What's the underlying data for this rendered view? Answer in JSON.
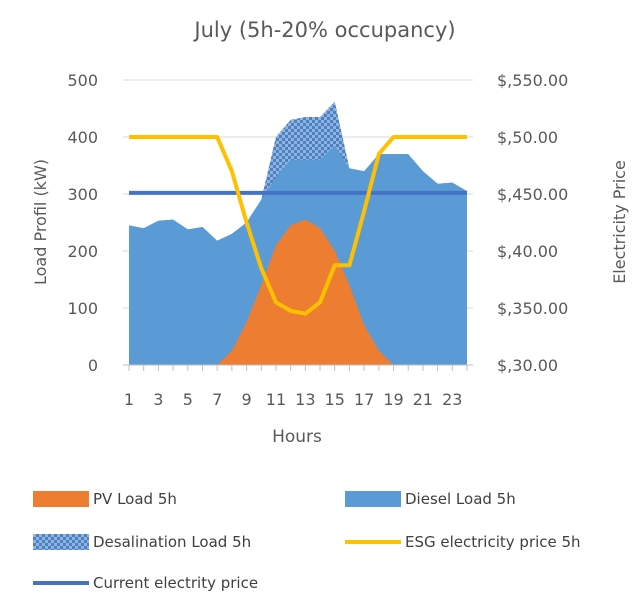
{
  "chart_data": {
    "type": "area",
    "title": "July (5h-20% occupancy)",
    "xlabel": "Hours",
    "ylabel": "Load Profil (kW)",
    "y2label": "Electricity Price",
    "x": [
      1,
      2,
      3,
      4,
      5,
      6,
      7,
      8,
      9,
      10,
      11,
      12,
      13,
      14,
      15,
      16,
      17,
      18,
      19,
      20,
      21,
      22,
      23,
      24
    ],
    "x_tick_labels": [
      "1",
      "3",
      "5",
      "7",
      "9",
      "11",
      "13",
      "15",
      "17",
      "19",
      "21",
      "23"
    ],
    "y_ticks": [
      "0",
      "100",
      "200",
      "300",
      "400",
      "500"
    ],
    "y2_ticks": [
      "$,30.00",
      "$,350.00",
      "$,40.00",
      "$,450.00",
      "$,50.00",
      "$,550.00"
    ],
    "ylim": [
      0,
      500
    ],
    "series": [
      {
        "name": "PV Load 5h",
        "color": "#ED7D31",
        "kind": "area",
        "values": [
          0,
          0,
          0,
          0,
          0,
          0,
          0,
          25,
          75,
          140,
          210,
          245,
          255,
          240,
          200,
          140,
          70,
          25,
          0,
          0,
          0,
          0,
          0,
          0
        ]
      },
      {
        "name": "Diesel Load  5h",
        "color": "#5B9BD5",
        "kind": "area",
        "values": [
          245,
          240,
          253,
          255,
          238,
          242,
          218,
          230,
          250,
          290,
          330,
          360,
          360,
          360,
          385,
          345,
          340,
          370,
          370,
          370,
          340,
          318,
          320,
          305
        ]
      },
      {
        "name": "Desalination Load 5h",
        "color": "#5B9BD5",
        "kind": "pattern",
        "values": [
          245,
          240,
          253,
          255,
          238,
          242,
          218,
          230,
          250,
          290,
          400,
          430,
          435,
          435,
          462,
          345,
          340,
          370,
          370,
          370,
          340,
          318,
          320,
          305
        ]
      },
      {
        "name": "ESG electricity price 5h",
        "color": "#FFC000",
        "kind": "line",
        "values": [
          400,
          400,
          400,
          400,
          400,
          400,
          400,
          340,
          250,
          170,
          110,
          95,
          90,
          110,
          175,
          175,
          270,
          370,
          400,
          400,
          400,
          400,
          400,
          400
        ]
      },
      {
        "name": "Current electrity price",
        "color": "#4472C4",
        "kind": "line",
        "values": [
          302,
          302,
          302,
          302,
          302,
          302,
          302,
          302,
          302,
          302,
          302,
          302,
          302,
          302,
          302,
          302,
          302,
          302,
          302,
          302,
          302,
          302,
          302,
          302
        ]
      }
    ],
    "legend_position": "bottom",
    "grid": true
  }
}
